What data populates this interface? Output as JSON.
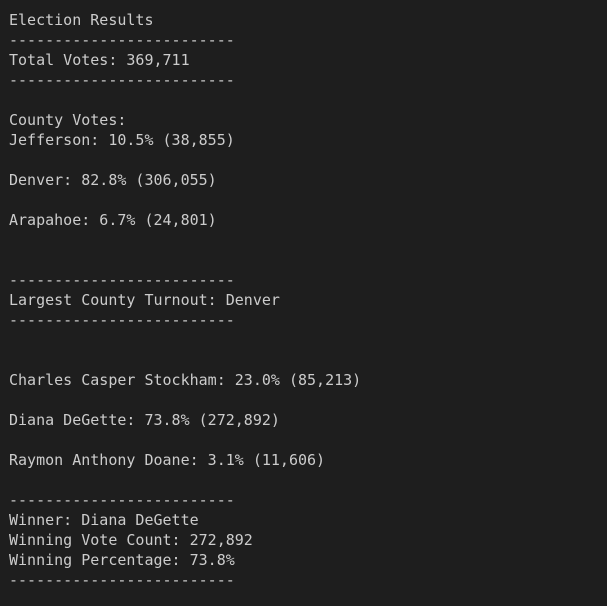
{
  "output": {
    "title": "Election Results",
    "separator": "-------------------------",
    "total_votes": "Total Votes: 369,711",
    "county_header": "County Votes:",
    "counties": [
      "Jefferson: 10.5% (38,855)",
      "Denver: 82.8% (306,055)",
      "Arapahoe: 6.7% (24,801)"
    ],
    "largest_county": "Largest County Turnout: Denver",
    "candidates": [
      "Charles Casper Stockham: 23.0% (85,213)",
      "Diana DeGette: 73.8% (272,892)",
      "Raymon Anthony Doane: 3.1% (11,606)"
    ],
    "winner": "Winner: Diana DeGette",
    "winning_vote_count": "Winning Vote Count: 272,892",
    "winning_percentage": "Winning Percentage: 73.8%"
  }
}
